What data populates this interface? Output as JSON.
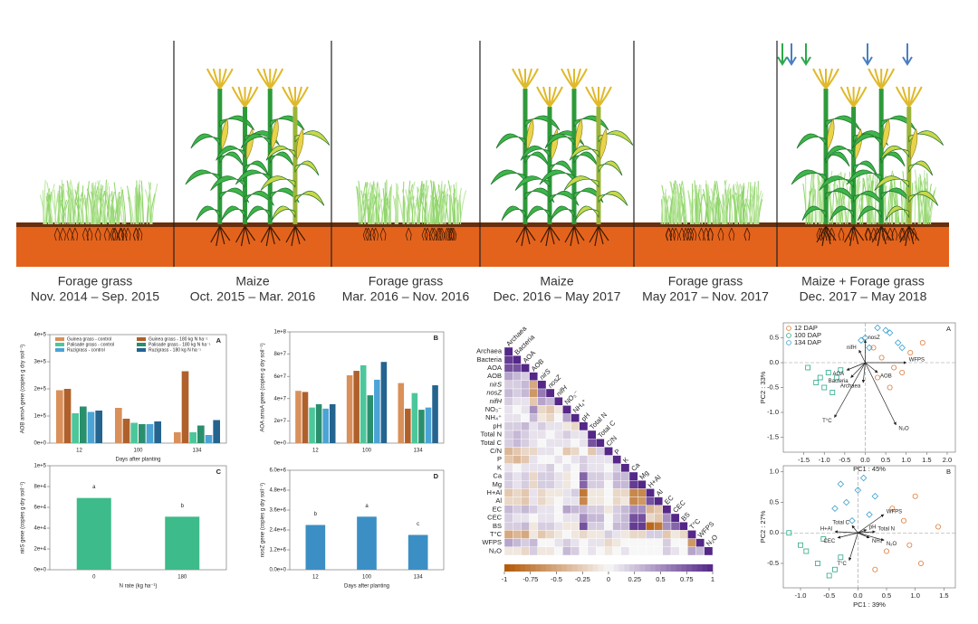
{
  "timeline": {
    "periods": [
      {
        "crop": "Forage grass",
        "dates": "Nov. 2014 – Sep. 2015"
      },
      {
        "crop": "Maize",
        "dates": "Oct. 2015 – Mar. 2016"
      },
      {
        "crop": "Forage grass",
        "dates": "Mar. 2016 – Nov. 2016"
      },
      {
        "crop": "Maize",
        "dates": "Dec. 2016 – May 2017"
      },
      {
        "crop": "Forage grass",
        "dates": "May 2017 – Nov. 2017"
      },
      {
        "crop": "Maize + Forage grass",
        "dates": "Dec. 2017 – May 2018"
      }
    ]
  },
  "chart_data": [
    {
      "type": "bar",
      "panel": "A",
      "ylabel": "AOB amoA gene (copies g dry soil⁻¹)",
      "xlabel": "Days after planting",
      "categories": [
        "12",
        "100",
        "134"
      ],
      "series": [
        {
          "name": "Guinea grass - control",
          "color": "#d9905a",
          "values": [
            195000,
            130000,
            40000
          ]
        },
        {
          "name": "Guinea grass - 180 kg N ha⁻¹",
          "color": "#b0602a",
          "values": [
            200000,
            90000,
            265000
          ]
        },
        {
          "name": "Palisade grass - control",
          "color": "#4cc79b",
          "values": [
            110000,
            75000,
            40000
          ]
        },
        {
          "name": "Palisade grass - 180 kg N ha⁻¹",
          "color": "#2a8f6c",
          "values": [
            135000,
            70000,
            65000
          ]
        },
        {
          "name": "Ruzigrass - control",
          "color": "#4ba3d6",
          "values": [
            115000,
            70000,
            30000
          ]
        },
        {
          "name": "Ruzigrass - 180 kg N ha⁻¹",
          "color": "#24648f",
          "values": [
            120000,
            80000,
            85000
          ]
        }
      ],
      "ylim": [
        0,
        400000
      ],
      "yticks": [
        {
          "value": 0,
          "label": "0e+0"
        },
        {
          "value": 100000,
          "label": "1e+5"
        },
        {
          "value": 200000,
          "label": "2e+5"
        },
        {
          "value": 300000,
          "label": "3e+5"
        },
        {
          "value": 400000,
          "label": "4e+5"
        }
      ]
    },
    {
      "type": "bar",
      "panel": "B",
      "ylabel": "AOA amoA gene (copies g dry soil⁻¹)",
      "categories": [
        "12",
        "100",
        "134"
      ],
      "series": [
        {
          "color": "#d9905a",
          "values": [
            47000000,
            61000000,
            54000000
          ]
        },
        {
          "color": "#b0602a",
          "values": [
            46000000,
            65000000,
            31000000
          ]
        },
        {
          "color": "#4cc79b",
          "values": [
            32000000,
            70000000,
            45000000
          ]
        },
        {
          "color": "#2a8f6c",
          "values": [
            35000000,
            43000000,
            30000000
          ]
        },
        {
          "color": "#4ba3d6",
          "values": [
            31000000,
            57000000,
            32000000
          ]
        },
        {
          "color": "#24648f",
          "values": [
            35000000,
            73000000,
            52000000
          ]
        }
      ],
      "ylim": [
        0,
        100000000
      ],
      "yticks": [
        {
          "value": 0,
          "label": "0e+0"
        },
        {
          "value": 20000000,
          "label": "2e+7"
        },
        {
          "value": 40000000,
          "label": "4e+7"
        },
        {
          "value": 60000000,
          "label": "6e+7"
        },
        {
          "value": 80000000,
          "label": "8e+7"
        },
        {
          "value": 100000000,
          "label": "1e+8"
        }
      ]
    },
    {
      "type": "bar",
      "panel": "C",
      "ylabel": "nirS gene (copies g dry soil⁻¹)",
      "xlabel": "N rate (kg ha⁻¹)",
      "categories": [
        "0",
        "180"
      ],
      "series": [
        {
          "color": "#3dbb8a",
          "values": [
            69000,
            51000
          ],
          "letters": [
            "a",
            "b"
          ]
        }
      ],
      "ylim": [
        0,
        100000
      ],
      "yticks": [
        {
          "value": 0,
          "label": "0e+0"
        },
        {
          "value": 20000,
          "label": "2e+4"
        },
        {
          "value": 40000,
          "label": "4e+4"
        },
        {
          "value": 60000,
          "label": "6e+4"
        },
        {
          "value": 80000,
          "label": "8e+4"
        },
        {
          "value": 100000,
          "label": "1e+5"
        }
      ]
    },
    {
      "type": "bar",
      "panel": "D",
      "ylabel": "nosZ gene (copies g dry soil⁻¹)",
      "xlabel": "Days after planting",
      "categories": [
        "12",
        "100",
        "134"
      ],
      "series": [
        {
          "color": "#3b8fc4",
          "values": [
            2700000,
            3200000,
            2100000
          ],
          "letters": [
            "b",
            "a",
            "c"
          ]
        }
      ],
      "ylim": [
        0,
        6000000
      ],
      "yticks": [
        {
          "value": 0,
          "label": "0.0e+0"
        },
        {
          "value": 1200000,
          "label": "1.2e+6"
        },
        {
          "value": 2400000,
          "label": "2.4e+6"
        },
        {
          "value": 3600000,
          "label": "3.6e+6"
        },
        {
          "value": 4800000,
          "label": "4.8e+6"
        },
        {
          "value": 6000000,
          "label": "6.0e+6"
        }
      ]
    },
    {
      "type": "heatmap",
      "variables": [
        "Archaea",
        "Bacteria",
        "AOA",
        "AOB",
        "nirS",
        "nosZ",
        "nifH",
        "NO₃⁻",
        "NH₄⁺",
        "pH",
        "Total N",
        "Total C",
        "C/N",
        "P",
        "K",
        "Ca",
        "Mg",
        "H+Al",
        "Al",
        "EC",
        "CEC",
        "BS",
        "T°C",
        "WFPS",
        "N₂O"
      ],
      "values": [
        [
          1
        ],
        [
          0.9,
          1
        ],
        [
          0.8,
          0.8,
          1
        ],
        [
          0.4,
          0.3,
          0.2,
          1
        ],
        [
          0.2,
          0.2,
          0.3,
          -0.5,
          1
        ],
        [
          0.3,
          0.2,
          0.3,
          -0.6,
          0.6,
          1
        ],
        [
          0.2,
          0.1,
          0.1,
          -0.3,
          0.4,
          0.3,
          1
        ],
        [
          0.1,
          0,
          0.1,
          0.5,
          -0.2,
          -0.3,
          -0.1,
          1
        ],
        [
          0.1,
          0.1,
          0,
          0.3,
          -0.1,
          -0.2,
          0,
          0.4,
          1
        ],
        [
          0.2,
          0.2,
          0.3,
          0.1,
          0.2,
          0.1,
          0.1,
          -0.1,
          -0.2,
          1
        ],
        [
          0.2,
          0.3,
          0.2,
          0.1,
          0.1,
          0,
          0.1,
          0.2,
          0.1,
          0.1,
          1
        ],
        [
          0.2,
          0.3,
          0.2,
          0.1,
          0,
          0.1,
          0.1,
          0.1,
          0,
          0.1,
          0.8,
          1
        ],
        [
          -0.4,
          -0.3,
          -0.2,
          -0.2,
          0.1,
          0.1,
          0,
          -0.3,
          -0.2,
          0,
          -0.3,
          0.2,
          1
        ],
        [
          -0.3,
          -0.4,
          -0.3,
          0.1,
          0,
          0,
          0.1,
          0,
          0.1,
          0.2,
          0.1,
          0.1,
          0.1,
          1
        ],
        [
          0.1,
          0,
          0.1,
          0.1,
          0.1,
          0.2,
          0,
          0.1,
          0,
          0.2,
          0.1,
          0.1,
          0,
          0.2,
          1
        ],
        [
          0.2,
          0.1,
          0.2,
          -0.2,
          0.2,
          0.2,
          0.1,
          -0.1,
          0,
          0.7,
          0.2,
          0.2,
          0.1,
          0.3,
          0.3,
          1
        ],
        [
          0.2,
          0.1,
          0.2,
          -0.2,
          0.2,
          0.2,
          0.1,
          -0.1,
          0,
          0.7,
          0.2,
          0.2,
          0,
          0.3,
          0.3,
          0.9,
          1
        ],
        [
          -0.3,
          -0.2,
          -0.3,
          0.1,
          -0.2,
          -0.1,
          -0.1,
          0.1,
          0.2,
          -0.8,
          -0.1,
          -0.1,
          0,
          -0.2,
          -0.2,
          -0.7,
          -0.7,
          1
        ],
        [
          -0.2,
          -0.2,
          -0.3,
          0.1,
          -0.2,
          -0.1,
          0,
          0.1,
          0.1,
          -0.7,
          -0.1,
          -0.1,
          0,
          -0.2,
          -0.1,
          -0.7,
          -0.6,
          0.8,
          1
        ],
        [
          0.3,
          0.2,
          0.3,
          0.2,
          0.1,
          0.1,
          0,
          0.4,
          0.3,
          0.3,
          0.2,
          0.2,
          -0.1,
          0.2,
          0.3,
          0.5,
          0.5,
          -0.4,
          -0.3,
          1
        ],
        [
          0.2,
          0.1,
          0.1,
          0,
          0.1,
          0.1,
          0,
          0.1,
          0.1,
          0.5,
          0.3,
          0.3,
          0,
          0.2,
          0.3,
          0.8,
          0.8,
          -0.2,
          -0.3,
          0.5,
          1
        ],
        [
          0.2,
          0.2,
          0.3,
          -0.1,
          0.2,
          0.2,
          0.1,
          -0.1,
          -0.1,
          0.8,
          0.2,
          0.2,
          0,
          0.3,
          0.3,
          0.9,
          0.9,
          -0.9,
          -0.8,
          0.5,
          0.7,
          1
        ],
        [
          -0.5,
          -0.4,
          -0.5,
          -0.1,
          -0.3,
          -0.2,
          -0.1,
          0,
          -0.1,
          -0.2,
          -0.1,
          -0.1,
          0.2,
          0.1,
          -0.1,
          -0.2,
          -0.2,
          0.2,
          0.2,
          -0.3,
          -0.1,
          -0.2,
          1
        ],
        [
          0.4,
          0.3,
          0.2,
          0.3,
          0,
          0,
          0.1,
          0.2,
          0.1,
          0,
          0.1,
          0.1,
          -0.2,
          -0.1,
          0,
          0,
          0,
          0,
          0,
          0.2,
          0,
          0,
          -0.6,
          1
        ],
        [
          -0.1,
          -0.1,
          -0.2,
          0.2,
          -0.1,
          -0.1,
          0,
          0.3,
          0.2,
          0,
          0.1,
          0,
          -0.1,
          0,
          0.1,
          0,
          0,
          0,
          0,
          0.2,
          0.1,
          0,
          0.4,
          0.3,
          1
        ]
      ],
      "clim": [
        -1,
        1
      ],
      "scale_ticks": [
        -1,
        -0.75,
        -0.5,
        -0.25,
        0,
        0.25,
        0.5,
        0.75,
        1
      ]
    },
    {
      "type": "biplot",
      "panel": "A",
      "xlabel": "PC1 : 45%",
      "ylabel": "PC2 : 33%",
      "xlim": [
        -2,
        2.2
      ],
      "ylim": [
        -1.8,
        0.8
      ],
      "xticks": [
        -1.5,
        {
          "value": -1,
          "label": "-1.0"
        },
        -0.5,
        {
          "value": 0,
          "label": "0.0"
        },
        0.5,
        {
          "value": 1,
          "label": "1.0"
        },
        1.5,
        {
          "value": 2,
          "label": "2.0"
        }
      ],
      "yticks": [
        0.5,
        {
          "value": 0,
          "label": "0.0"
        },
        -0.5,
        {
          "value": -1,
          "label": "-1.0"
        },
        -1.5
      ],
      "series": [
        {
          "name": "12 DAP",
          "color": "#e07b39",
          "marker": "circle",
          "x": [
            0.4,
            0.9,
            1.4,
            0.6,
            0.2,
            1.1,
            0.3,
            0.7
          ],
          "y": [
            0.1,
            -0.2,
            0.4,
            -0.5,
            0.3,
            0.2,
            -0.3,
            -0.1
          ]
        },
        {
          "name": "100 DAP",
          "color": "#2aa88a",
          "marker": "square",
          "x": [
            -1.2,
            -0.9,
            -1,
            -0.7,
            -1.4,
            -0.8,
            -1.1,
            -0.6
          ],
          "y": [
            -0.4,
            -0.2,
            -0.5,
            -0.3,
            -0.1,
            -0.6,
            -0.3,
            -0.15
          ]
        },
        {
          "name": "134 DAP",
          "color": "#3aa0d0",
          "marker": "diamond",
          "x": [
            0,
            0.3,
            0.6,
            0.8,
            0.1,
            0.5,
            -0.1,
            0.9
          ],
          "y": [
            0.5,
            0.7,
            0.6,
            0.4,
            0.3,
            0.65,
            0.45,
            0.3
          ]
        }
      ],
      "loadings": [
        {
          "label": "WFPS",
          "x": 1,
          "y": 0
        },
        {
          "label": "AOB",
          "x": 0.3,
          "y": -0.2
        },
        {
          "label": "N₂O",
          "x": 0.75,
          "y": -1.25
        },
        {
          "label": "T°C",
          "x": -0.75,
          "y": -1.1
        },
        {
          "label": "Archaea",
          "x": -0.05,
          "y": -0.4
        },
        {
          "label": "Bacteria",
          "x": -0.35,
          "y": -0.3
        },
        {
          "label": "AOA",
          "x": -0.45,
          "y": -0.15
        },
        {
          "label": "nifH",
          "x": -0.15,
          "y": 0.25
        },
        {
          "label": "nosZ",
          "x": 0,
          "y": 0.45
        }
      ]
    },
    {
      "type": "biplot",
      "panel": "B",
      "xlabel": "PC1 : 39%",
      "ylabel": "PC2 : 27%",
      "xlim": [
        -1.3,
        1.7
      ],
      "ylim": [
        -0.9,
        1.1
      ],
      "xticks": [
        {
          "value": -1,
          "label": "-1.0"
        },
        -0.5,
        {
          "value": 0,
          "label": "0.0"
        },
        0.5,
        {
          "value": 1,
          "label": "1.0"
        },
        1.5
      ],
      "yticks": [
        {
          "value": 1,
          "label": "1.0"
        },
        0.5,
        {
          "value": 0,
          "label": "0.0"
        },
        -0.5
      ],
      "series": [
        {
          "color": "#e07b39",
          "marker": "circle",
          "x": [
            0.5,
            0.8,
            1.1,
            1.4,
            0.6,
            0.9,
            0.3,
            1
          ],
          "y": [
            -0.3,
            0.2,
            -0.5,
            0.1,
            0.4,
            -0.2,
            -0.6,
            0.6
          ]
        },
        {
          "color": "#2aa88a",
          "marker": "square",
          "x": [
            -1,
            -0.7,
            -0.5,
            -1.2,
            -0.3,
            -0.6,
            -0.9,
            -0.4
          ],
          "y": [
            -0.2,
            -0.5,
            -0.7,
            0,
            -0.4,
            -0.1,
            -0.3,
            -0.6
          ]
        },
        {
          "color": "#3aa0d0",
          "marker": "diamond",
          "x": [
            -0.2,
            0,
            0.2,
            -0.4,
            0.1,
            -0.1,
            0.3,
            -0.3
          ],
          "y": [
            0.5,
            0.7,
            0.3,
            0.4,
            0.9,
            0.2,
            0.6,
            0.8
          ]
        }
      ],
      "loadings": [
        {
          "label": "WFPS",
          "x": 0.45,
          "y": 0.3
        },
        {
          "label": "Total C",
          "x": -0.1,
          "y": 0.12
        },
        {
          "label": "Total N",
          "x": 0.3,
          "y": 0.02
        },
        {
          "label": "H+Al",
          "x": -0.4,
          "y": 0.02
        },
        {
          "label": "CEC",
          "x": -0.35,
          "y": -0.08
        },
        {
          "label": "T°C",
          "x": -0.15,
          "y": -0.45
        },
        {
          "label": "N₂O",
          "x": 0.45,
          "y": -0.12
        },
        {
          "label": "NH₄⁺",
          "x": 0.2,
          "y": -0.08
        },
        {
          "label": "pH",
          "x": 0.15,
          "y": 0.05
        }
      ]
    }
  ]
}
